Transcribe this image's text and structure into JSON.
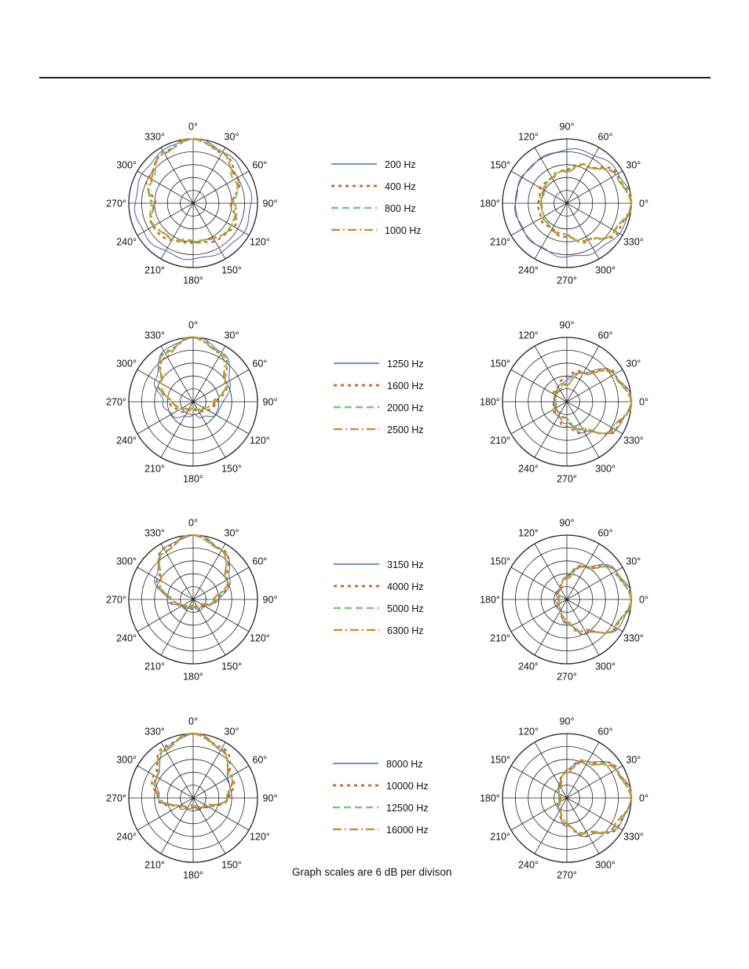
{
  "colors": {
    "series_a": "#4a6fb5",
    "series_b": "#c8642a",
    "series_c": "#7ec47a",
    "series_d": "#cc8a1e",
    "grid": "#222222"
  },
  "note": "Graph scales are 6 dB per divison",
  "chart_data": [
    {
      "type": "polar",
      "row": 1,
      "side": "left",
      "scale_db_per_division": 6,
      "divisions": 5,
      "angle_labels": [
        "0°",
        "30°",
        "60°",
        "90°",
        "120°",
        "150°",
        "180°",
        "210°",
        "240°",
        "270°",
        "300°",
        "330°"
      ],
      "series": [
        {
          "name": "200 Hz",
          "style": "solid",
          "color_key": "series_a",
          "level_db": [
            0,
            -2,
            -3,
            -3,
            -3,
            -4,
            -4,
            -4,
            -3,
            -3,
            -3,
            -2
          ]
        },
        {
          "name": "400 Hz",
          "style": "dotted",
          "color_key": "series_b",
          "level_db": [
            0,
            -3,
            -6,
            -12,
            -8,
            -10,
            -12,
            -10,
            -8,
            -12,
            -6,
            -3
          ]
        },
        {
          "name": "800 Hz",
          "style": "dashed",
          "color_key": "series_c",
          "level_db": [
            0,
            -3,
            -8,
            -10,
            -9,
            -11,
            -13,
            -11,
            -9,
            -10,
            -8,
            -3
          ]
        },
        {
          "name": "1000 Hz",
          "style": "dashdot",
          "color_key": "series_d",
          "level_db": [
            0,
            -3,
            -7,
            -11,
            -9,
            -11,
            -12,
            -11,
            -9,
            -11,
            -7,
            -3
          ]
        }
      ]
    },
    {
      "type": "polar",
      "row": 1,
      "side": "right",
      "scale_db_per_division": 6,
      "divisions": 5,
      "angle_labels": [
        "0°",
        "30°",
        "60°",
        "90°",
        "120°",
        "150°",
        "180°",
        "210°",
        "240°",
        "270°",
        "300°",
        "330°"
      ],
      "series": [
        {
          "name": "200 Hz",
          "style": "solid",
          "color_key": "series_a",
          "level_db": [
            0,
            -2,
            -4,
            -5,
            -6,
            -6,
            -6,
            -6,
            -6,
            -5,
            -4,
            -2
          ]
        },
        {
          "name": "400 Hz",
          "style": "dotted",
          "color_key": "series_b",
          "level_db": [
            0,
            -3,
            -10,
            -14,
            -16,
            -16,
            -17,
            -16,
            -16,
            -14,
            -10,
            -3
          ]
        },
        {
          "name": "800 Hz",
          "style": "dashed",
          "color_key": "series_c",
          "level_db": [
            0,
            -4,
            -10,
            -15,
            -16,
            -18,
            -18,
            -18,
            -16,
            -15,
            -10,
            -4
          ]
        },
        {
          "name": "1000 Hz",
          "style": "dashdot",
          "color_key": "series_d",
          "level_db": [
            0,
            -4,
            -10,
            -15,
            -16,
            -17,
            -18,
            -17,
            -16,
            -15,
            -10,
            -4
          ]
        }
      ]
    },
    {
      "type": "polar",
      "row": 2,
      "side": "left",
      "scale_db_per_division": 6,
      "divisions": 5,
      "angle_labels": [
        "0°",
        "30°",
        "60°",
        "90°",
        "120°",
        "150°",
        "180°",
        "210°",
        "240°",
        "270°",
        "300°",
        "330°"
      ],
      "series": [
        {
          "name": "1250 Hz",
          "style": "solid",
          "color_key": "series_a",
          "level_db": [
            0,
            -3,
            -10,
            -16,
            -18,
            -22,
            -24,
            -22,
            -18,
            -16,
            -10,
            -3
          ]
        },
        {
          "name": "1600 Hz",
          "style": "dotted",
          "color_key": "series_b",
          "level_db": [
            0,
            -4,
            -12,
            -19,
            -22,
            -25,
            -26,
            -25,
            -22,
            -19,
            -12,
            -4
          ]
        },
        {
          "name": "2000 Hz",
          "style": "dashed",
          "color_key": "series_c",
          "level_db": [
            0,
            -4,
            -12,
            -20,
            -24,
            -26,
            -27,
            -26,
            -24,
            -20,
            -12,
            -4
          ]
        },
        {
          "name": "2500 Hz",
          "style": "dashdot",
          "color_key": "series_d",
          "level_db": [
            0,
            -5,
            -13,
            -20,
            -24,
            -26,
            -27,
            -26,
            -24,
            -20,
            -13,
            -5
          ]
        }
      ]
    },
    {
      "type": "polar",
      "row": 2,
      "side": "right",
      "scale_db_per_division": 6,
      "divisions": 5,
      "angle_labels": [
        "0°",
        "30°",
        "60°",
        "90°",
        "120°",
        "150°",
        "180°",
        "210°",
        "240°",
        "270°",
        "300°",
        "330°"
      ],
      "series": [
        {
          "name": "1250 Hz",
          "style": "solid",
          "color_key": "series_a",
          "level_db": [
            0,
            -4,
            -14,
            -20,
            -22,
            -24,
            -24,
            -24,
            -22,
            -20,
            -14,
            -4
          ]
        },
        {
          "name": "1600 Hz",
          "style": "dotted",
          "color_key": "series_b",
          "level_db": [
            0,
            -4,
            -14,
            -18,
            -22,
            -23,
            -24,
            -23,
            -22,
            -18,
            -14,
            -4
          ]
        },
        {
          "name": "2000 Hz",
          "style": "dashed",
          "color_key": "series_c",
          "level_db": [
            0,
            -5,
            -15,
            -22,
            -23,
            -24,
            -25,
            -24,
            -23,
            -22,
            -15,
            -5
          ]
        },
        {
          "name": "2500 Hz",
          "style": "dashdot",
          "color_key": "series_d",
          "level_db": [
            0,
            -5,
            -15,
            -22,
            -23,
            -24,
            -25,
            -24,
            -23,
            -22,
            -15,
            -5
          ]
        }
      ]
    },
    {
      "type": "polar",
      "row": 3,
      "side": "left",
      "scale_db_per_division": 6,
      "divisions": 5,
      "angle_labels": [
        "0°",
        "30°",
        "60°",
        "90°",
        "120°",
        "150°",
        "180°",
        "210°",
        "240°",
        "270°",
        "300°",
        "330°"
      ],
      "series": [
        {
          "name": "3150 Hz",
          "style": "solid",
          "color_key": "series_a",
          "level_db": [
            0,
            -3,
            -10,
            -18,
            -24,
            -25,
            -26,
            -25,
            -24,
            -18,
            -10,
            -3
          ]
        },
        {
          "name": "4000 Hz",
          "style": "dotted",
          "color_key": "series_b",
          "level_db": [
            0,
            -3,
            -11,
            -19,
            -24,
            -26,
            -26,
            -26,
            -24,
            -19,
            -11,
            -3
          ]
        },
        {
          "name": "5000 Hz",
          "style": "dashed",
          "color_key": "series_c",
          "level_db": [
            0,
            -4,
            -12,
            -20,
            -25,
            -26,
            -27,
            -26,
            -25,
            -20,
            -12,
            -4
          ]
        },
        {
          "name": "6300 Hz",
          "style": "dashdot",
          "color_key": "series_d",
          "level_db": [
            0,
            -4,
            -12,
            -20,
            -25,
            -26,
            -27,
            -26,
            -25,
            -20,
            -12,
            -4
          ]
        }
      ]
    },
    {
      "type": "polar",
      "row": 3,
      "side": "right",
      "scale_db_per_division": 6,
      "divisions": 5,
      "angle_labels": [
        "0°",
        "30°",
        "60°",
        "90°",
        "120°",
        "150°",
        "180°",
        "210°",
        "240°",
        "270°",
        "300°",
        "330°"
      ],
      "series": [
        {
          "name": "3150 Hz",
          "style": "solid",
          "color_key": "series_a",
          "level_db": [
            0,
            -3,
            -12,
            -19,
            -24,
            -25,
            -25,
            -25,
            -24,
            -19,
            -12,
            -3
          ]
        },
        {
          "name": "4000 Hz",
          "style": "dotted",
          "color_key": "series_b",
          "level_db": [
            0,
            -4,
            -12,
            -19,
            -24,
            -25,
            -26,
            -25,
            -24,
            -19,
            -12,
            -4
          ]
        },
        {
          "name": "5000 Hz",
          "style": "dashed",
          "color_key": "series_c",
          "level_db": [
            0,
            -4,
            -13,
            -20,
            -24,
            -26,
            -26,
            -26,
            -24,
            -20,
            -13,
            -4
          ]
        },
        {
          "name": "6300 Hz",
          "style": "dashdot",
          "color_key": "series_d",
          "level_db": [
            0,
            -4,
            -13,
            -20,
            -24,
            -26,
            -26,
            -26,
            -24,
            -20,
            -13,
            -4
          ]
        }
      ]
    },
    {
      "type": "polar",
      "row": 4,
      "side": "left",
      "scale_db_per_division": 6,
      "divisions": 5,
      "angle_labels": [
        "0°",
        "30°",
        "60°",
        "90°",
        "120°",
        "150°",
        "180°",
        "210°",
        "240°",
        "270°",
        "300°",
        "330°"
      ],
      "series": [
        {
          "name": "8000 Hz",
          "style": "solid",
          "color_key": "series_a",
          "level_db": [
            0,
            -4,
            -11,
            -14,
            -22,
            -24,
            -26,
            -24,
            -22,
            -14,
            -11,
            -4
          ]
        },
        {
          "name": "10000 Hz",
          "style": "dotted",
          "color_key": "series_b",
          "level_db": [
            0,
            -3,
            -9,
            -13,
            -22,
            -25,
            -26,
            -25,
            -22,
            -13,
            -9,
            -3
          ]
        },
        {
          "name": "12500 Hz",
          "style": "dashed",
          "color_key": "series_c",
          "level_db": [
            0,
            -4,
            -10,
            -14,
            -23,
            -25,
            -27,
            -25,
            -23,
            -14,
            -10,
            -4
          ]
        },
        {
          "name": "16000 Hz",
          "style": "dashdot",
          "color_key": "series_d",
          "level_db": [
            0,
            -4,
            -10,
            -14,
            -23,
            -25,
            -26,
            -25,
            -23,
            -14,
            -10,
            -4
          ]
        }
      ]
    },
    {
      "type": "polar",
      "row": 4,
      "side": "right",
      "scale_db_per_division": 6,
      "divisions": 5,
      "angle_labels": [
        "0°",
        "30°",
        "60°",
        "90°",
        "120°",
        "150°",
        "180°",
        "210°",
        "240°",
        "270°",
        "300°",
        "330°"
      ],
      "series": [
        {
          "name": "8000 Hz",
          "style": "solid",
          "color_key": "series_a",
          "level_db": [
            0,
            -3,
            -10,
            -17,
            -23,
            -26,
            -27,
            -26,
            -23,
            -17,
            -10,
            -3
          ]
        },
        {
          "name": "10000 Hz",
          "style": "dotted",
          "color_key": "series_b",
          "level_db": [
            0,
            -3,
            -10,
            -17,
            -23,
            -26,
            -27,
            -26,
            -23,
            -17,
            -10,
            -3
          ]
        },
        {
          "name": "12500 Hz",
          "style": "dashed",
          "color_key": "series_c",
          "level_db": [
            0,
            -4,
            -11,
            -18,
            -24,
            -26,
            -27,
            -26,
            -24,
            -18,
            -11,
            -4
          ]
        },
        {
          "name": "16000 Hz",
          "style": "dashdot",
          "color_key": "series_d",
          "level_db": [
            0,
            -4,
            -11,
            -18,
            -24,
            -26,
            -27,
            -26,
            -24,
            -18,
            -11,
            -4
          ]
        }
      ]
    }
  ]
}
